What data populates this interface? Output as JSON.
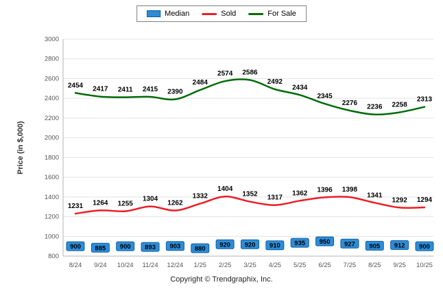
{
  "footer": {
    "copyright": "Copyright © Trendgraphix, Inc."
  },
  "chart_data": {
    "type": "line",
    "title": "",
    "xlabel": "",
    "ylabel": "Price (in $,000)",
    "ylim": [
      800,
      3000
    ],
    "ytick_step": 200,
    "grid": true,
    "legend_position": "top",
    "colors": {
      "grid": "#e3e3e3",
      "axis": "#b5b5b5",
      "tick_text": "#555555",
      "label_text": "#000000"
    },
    "categories": [
      "8/24",
      "9/24",
      "10/24",
      "11/24",
      "12/24",
      "1/25",
      "2/25",
      "3/25",
      "4/25",
      "5/25",
      "6/25",
      "7/25",
      "8/25",
      "9/25",
      "10/25"
    ],
    "series": [
      {
        "name": "Median",
        "style": "square-marker",
        "color": "#2d8dd8",
        "marker_border": "#0f5c9c",
        "values": [
          900,
          885,
          900,
          893,
          903,
          880,
          920,
          920,
          910,
          935,
          950,
          927,
          905,
          912,
          900
        ]
      },
      {
        "name": "Sold",
        "style": "smooth-line",
        "color": "#ee1c25",
        "values": [
          1231,
          1264,
          1255,
          1304,
          1262,
          1332,
          1404,
          1352,
          1317,
          1362,
          1396,
          1398,
          1341,
          1292,
          1294
        ]
      },
      {
        "name": "For Sale",
        "style": "smooth-line",
        "color": "#006b06",
        "values": [
          2454,
          2417,
          2411,
          2415,
          2390,
          2484,
          2574,
          2586,
          2492,
          2434,
          2345,
          2276,
          2236,
          2258,
          2313
        ]
      }
    ]
  }
}
